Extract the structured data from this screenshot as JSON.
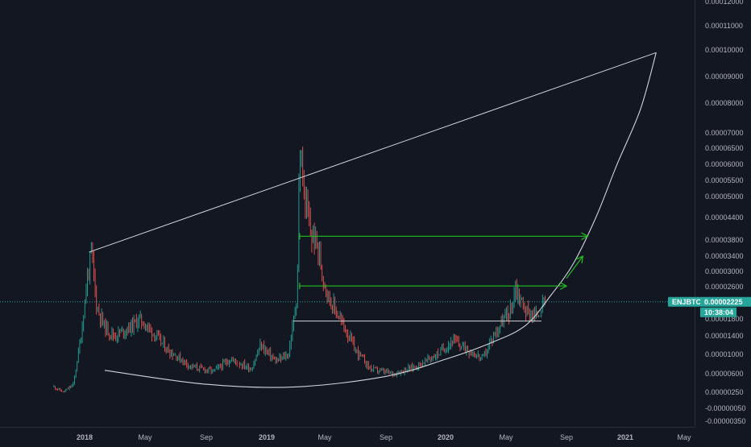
{
  "chart_data": {
    "type": "candlestick",
    "symbol_label": "ENJBTC",
    "last_price_label": "0.00002225",
    "countdown_label": "10:38:04",
    "last_price": 2.225e-05,
    "colors": {
      "background": "#131722",
      "up": "#26a69a",
      "down": "#ef5350",
      "drawing_white": "#d1d4dc",
      "drawing_green": "#21c021",
      "axis_text": "#b2b5be",
      "price_tag": "#26a69a"
    },
    "y_ticks": [
      {
        "label": "0.00012000",
        "value": 0.00012
      },
      {
        "label": "0.00011000",
        "value": 0.00011
      },
      {
        "label": "0.00010000",
        "value": 0.0001
      },
      {
        "label": "0.00009000",
        "value": 9e-05
      },
      {
        "label": "0.00008000",
        "value": 8e-05
      },
      {
        "label": "0.00007000",
        "value": 7e-05
      },
      {
        "label": "0.00006500",
        "value": 6.5e-05
      },
      {
        "label": "0.00006000",
        "value": 6e-05
      },
      {
        "label": "0.00005500",
        "value": 5.5e-05
      },
      {
        "label": "0.00005000",
        "value": 5e-05
      },
      {
        "label": "0.00004400",
        "value": 4.4e-05
      },
      {
        "label": "0.00003800",
        "value": 3.8e-05
      },
      {
        "label": "0.00003400",
        "value": 3.4e-05
      },
      {
        "label": "0.00003000",
        "value": 3e-05
      },
      {
        "label": "0.00002600",
        "value": 2.6e-05
      },
      {
        "label": "0.00001800",
        "value": 1.8e-05
      },
      {
        "label": "0.00001400",
        "value": 1.4e-05
      },
      {
        "label": "0.00001000",
        "value": 1e-05
      },
      {
        "label": "0.00000600",
        "value": 6e-06
      },
      {
        "label": "0.00000250",
        "value": 2.5e-06
      },
      {
        "label": "-0.00000050",
        "value": -5e-07
      },
      {
        "label": "-0.00000350",
        "value": -3.5e-06
      }
    ],
    "x_ticks": [
      {
        "label": "2018",
        "date": "2018-01-01"
      },
      {
        "label": "May",
        "date": "2018-05-01"
      },
      {
        "label": "Sep",
        "date": "2018-09-01"
      },
      {
        "label": "2019",
        "date": "2019-01-01"
      },
      {
        "label": "May",
        "date": "2019-05-01"
      },
      {
        "label": "Sep",
        "date": "2019-09-01"
      },
      {
        "label": "2020",
        "date": "2020-01-01"
      },
      {
        "label": "May",
        "date": "2020-05-01"
      },
      {
        "label": "Sep",
        "date": "2020-09-01"
      },
      {
        "label": "2021",
        "date": "2021-01-01"
      },
      {
        "label": "May",
        "date": "2021-05-01"
      }
    ],
    "price_path": [
      {
        "date": "2017-11-01",
        "price": 3.5e-06
      },
      {
        "date": "2017-11-20",
        "price": 2.5e-06
      },
      {
        "date": "2017-12-10",
        "price": 4e-06
      },
      {
        "date": "2017-12-25",
        "price": 1.4e-05
      },
      {
        "date": "2018-01-08",
        "price": 3e-05
      },
      {
        "date": "2018-01-15",
        "price": 3.45e-05
      },
      {
        "date": "2018-01-25",
        "price": 2.1e-05
      },
      {
        "date": "2018-02-10",
        "price": 1.6e-05
      },
      {
        "date": "2018-03-01",
        "price": 1.4e-05
      },
      {
        "date": "2018-04-01",
        "price": 1.6e-05
      },
      {
        "date": "2018-04-20",
        "price": 1.8e-05
      },
      {
        "date": "2018-05-15",
        "price": 1.5e-05
      },
      {
        "date": "2018-06-15",
        "price": 1.1e-05
      },
      {
        "date": "2018-08-01",
        "price": 7.5e-06
      },
      {
        "date": "2018-09-15",
        "price": 6.5e-06
      },
      {
        "date": "2018-10-20",
        "price": 9e-06
      },
      {
        "date": "2018-12-01",
        "price": 7e-06
      },
      {
        "date": "2018-12-20",
        "price": 1.2e-05
      },
      {
        "date": "2019-01-20",
        "price": 8.5e-06
      },
      {
        "date": "2019-02-15",
        "price": 1e-05
      },
      {
        "date": "2019-02-25",
        "price": 1.7e-05
      },
      {
        "date": "2019-03-05",
        "price": 2.5e-05
      },
      {
        "date": "2019-03-10",
        "price": 6.4e-05
      },
      {
        "date": "2019-03-20",
        "price": 5e-05
      },
      {
        "date": "2019-04-01",
        "price": 4e-05
      },
      {
        "date": "2019-04-15",
        "price": 3.7e-05
      },
      {
        "date": "2019-04-25",
        "price": 3e-05
      },
      {
        "date": "2019-05-10",
        "price": 2.3e-05
      },
      {
        "date": "2019-06-01",
        "price": 1.8e-05
      },
      {
        "date": "2019-07-01",
        "price": 1.1e-05
      },
      {
        "date": "2019-08-01",
        "price": 7e-06
      },
      {
        "date": "2019-09-15",
        "price": 6e-06
      },
      {
        "date": "2019-11-01",
        "price": 7.5e-06
      },
      {
        "date": "2019-12-15",
        "price": 1e-05
      },
      {
        "date": "2020-01-15",
        "price": 1.3e-05
      },
      {
        "date": "2020-02-15",
        "price": 1.1e-05
      },
      {
        "date": "2020-03-15",
        "price": 9e-06
      },
      {
        "date": "2020-04-15",
        "price": 1.6e-05
      },
      {
        "date": "2020-05-10",
        "price": 2e-05
      },
      {
        "date": "2020-05-20",
        "price": 2.6e-05
      },
      {
        "date": "2020-06-10",
        "price": 2e-05
      },
      {
        "date": "2020-07-01",
        "price": 1.85e-05
      },
      {
        "date": "2020-07-20",
        "price": 2.25e-05
      }
    ],
    "drawings": {
      "upper_trendline": [
        {
          "date": "2018-01-10",
          "price": 3.5e-05
        },
        {
          "date": "2021-03-05",
          "price": 9.9e-05
        }
      ],
      "lower_curve": [
        {
          "date": "2018-02-10",
          "price": 6.7e-06
        },
        {
          "date": "2018-09-01",
          "price": 4e-06
        },
        {
          "date": "2019-03-01",
          "price": 3.5e-06
        },
        {
          "date": "2019-09-01",
          "price": 5.5e-06
        },
        {
          "date": "2020-01-01",
          "price": 9e-06
        },
        {
          "date": "2020-04-01",
          "price": 1.25e-05
        },
        {
          "date": "2020-06-10",
          "price": 1.65e-05
        },
        {
          "date": "2020-08-01",
          "price": 2.4e-05
        },
        {
          "date": "2020-09-15",
          "price": 3.2e-05
        },
        {
          "date": "2020-11-01",
          "price": 4.4e-05
        },
        {
          "date": "2020-12-15",
          "price": 6e-05
        },
        {
          "date": "2021-02-01",
          "price": 7.8e-05
        },
        {
          "date": "2021-03-05",
          "price": 9.9e-05
        }
      ],
      "support_line": {
        "from": "2019-02-25",
        "to": "2020-07-12",
        "price": 1.75e-05
      },
      "green_arrows": [
        {
          "from": "2019-03-10",
          "to": "2020-10-15",
          "price": 3.9e-05
        },
        {
          "from": "2019-03-10",
          "to": "2020-09-01",
          "price": 2.62e-05
        }
      ],
      "green_diagonal_arrow": [
        {
          "date": "2020-09-01",
          "price": 2.82e-05
        },
        {
          "date": "2020-10-05",
          "price": 3.4e-05
        }
      ]
    }
  }
}
